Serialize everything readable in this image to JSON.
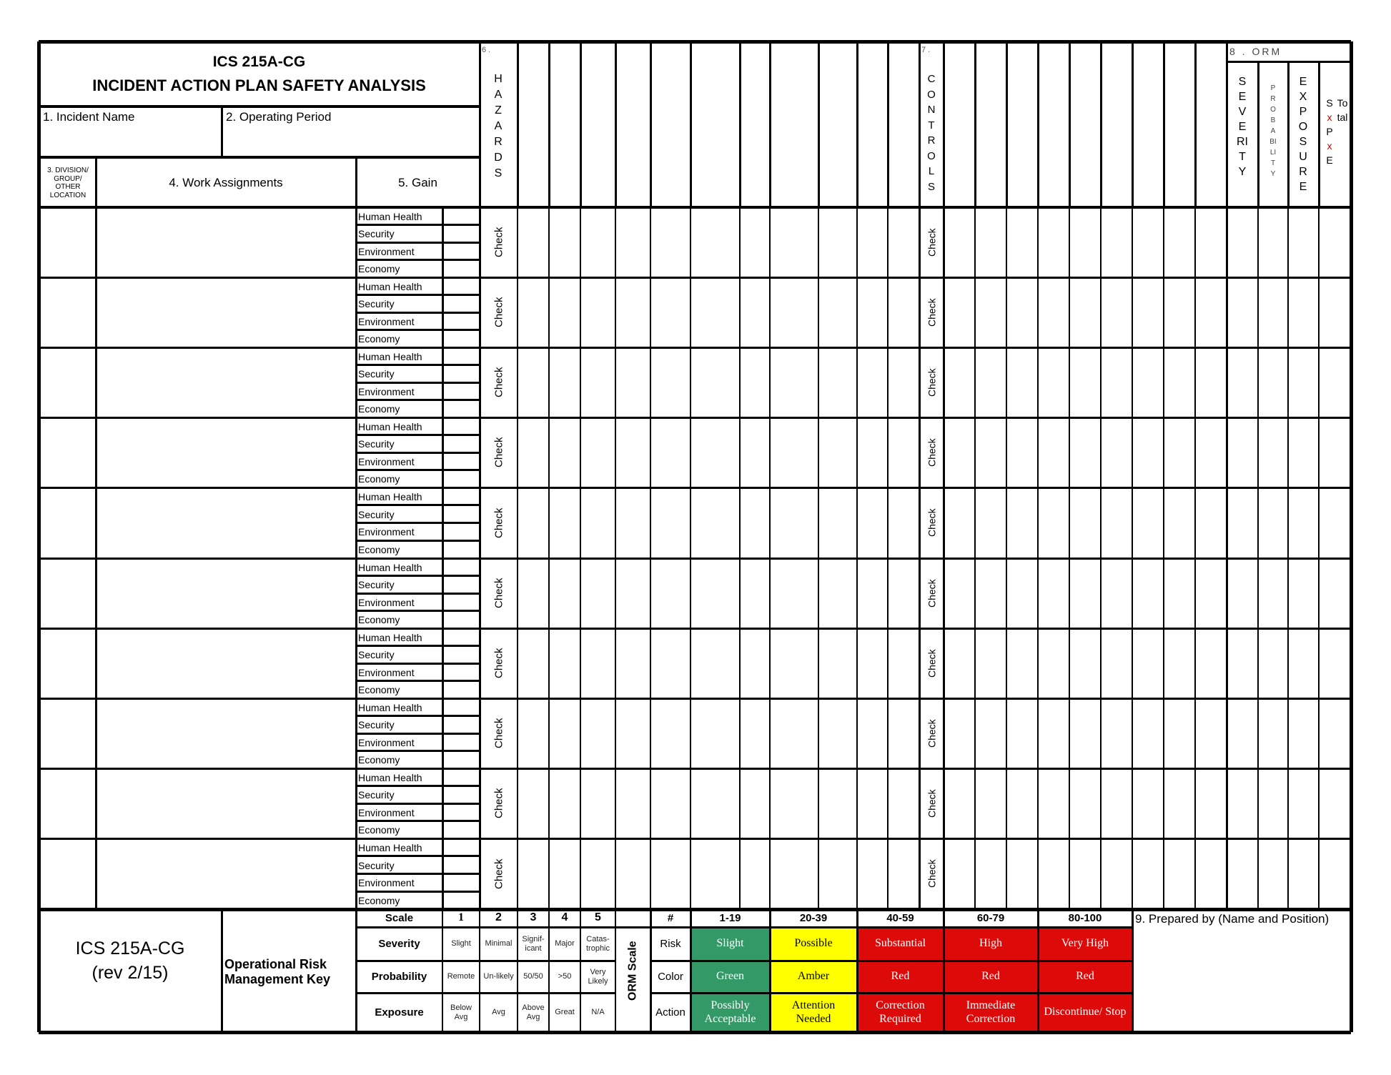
{
  "header": {
    "form_id": "ICS 215A-CG",
    "title": "INCIDENT ACTION PLAN SAFETY ANALYSIS",
    "incident_name_label": "1. Incident Name",
    "operating_period_label": "2.  Operating Period",
    "division_label": "3. DIVISION/ GROUP/ OTHER LOCATION",
    "work_assignments_label": "4. Work Assignments",
    "gain_label": "5. Gain",
    "hazards_number": "6 .",
    "hazards_label": "HAZARDS",
    "controls_number": "7 .",
    "controls_label": "CONTROLS"
  },
  "orm": {
    "label": "8 . ORM",
    "columns": [
      "SEVERITY",
      "PROBABILITY",
      "EXPOSURE"
    ],
    "spe_letters": [
      "S",
      "x",
      "P",
      "x",
      "E"
    ],
    "total_label": "Total"
  },
  "rows": {
    "gain_items": [
      "Human Health",
      "Security",
      "Environment",
      "Economy"
    ],
    "check_label": "Check"
  },
  "footer": {
    "form_id": "ICS 215A-CG",
    "revision": "(rev 2/15)",
    "key_title": "Operational Risk Management Key",
    "scale_header": "Scale",
    "scale_values": [
      "1",
      "2",
      "3",
      "4",
      "5"
    ],
    "scale_rows": [
      {
        "label": "Severity",
        "values": [
          "Slight",
          "Minimal",
          "Signif-icant",
          "Major",
          "Catas-trophic"
        ]
      },
      {
        "label": "Probability",
        "values": [
          "Remote",
          "Un-likely",
          "50/50",
          ">50",
          "Very Likely"
        ]
      },
      {
        "label": "Exposure",
        "values": [
          "Below Avg",
          "Avg",
          "Above Avg",
          "Great",
          "N/A"
        ]
      }
    ],
    "orm_scale_label": "ORM Scale",
    "matrix_header": "#",
    "matrix_row_labels": [
      "Risk",
      "Color",
      "Action"
    ],
    "matrix": [
      {
        "range": "1-19",
        "risk": "Slight",
        "color": "Green",
        "action": "Possibly Acceptable",
        "fill": "#339966",
        "text": "#ffffff"
      },
      {
        "range": "20-39",
        "risk": "Possible",
        "color": "Amber",
        "action": "Attention Needed",
        "fill": "#ffff00",
        "text": "#000000"
      },
      {
        "range": "40-59",
        "risk": "Substantial",
        "color": "Red",
        "action": "Correction Required",
        "fill": "#dd0a0a",
        "text": "#ffffff"
      },
      {
        "range": "60-79",
        "risk": "High",
        "color": "Red",
        "action": "Immediate Correction",
        "fill": "#dd0a0a",
        "text": "#ffffff"
      },
      {
        "range": "80-100",
        "risk": "Very High",
        "color": "Red",
        "action": "Discontinue/ Stop",
        "fill": "#dd0a0a",
        "text": "#ffffff"
      }
    ],
    "prepared_by_label": "9. Prepared by (Name and Position)"
  },
  "colors": {
    "red_x": "#cc0000"
  }
}
